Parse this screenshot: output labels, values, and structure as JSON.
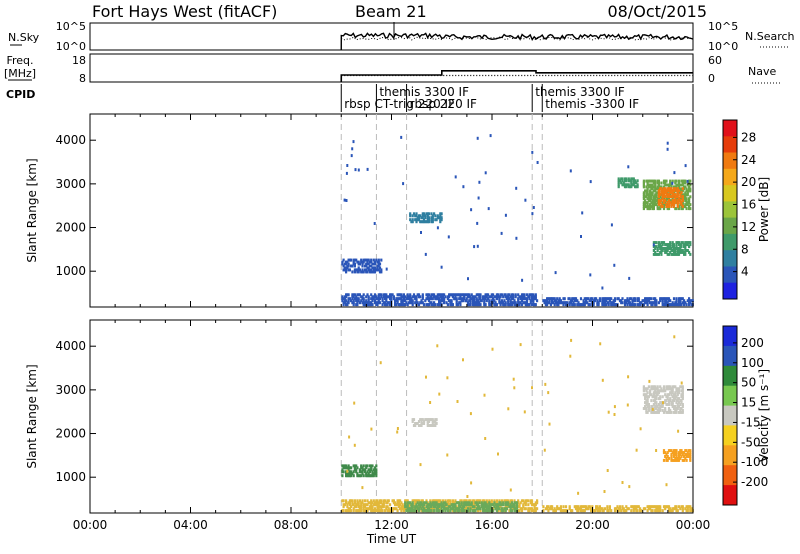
{
  "header": {
    "title": "Fort Hays West (fitACF)",
    "beam": "Beam 21",
    "date": "08/Oct/2015"
  },
  "chart_data": [
    {
      "type": "line",
      "panel": "noise",
      "left_label": "N.Sky",
      "right_label": "N.Search",
      "left_ticks": [
        "10^5",
        "10^0"
      ],
      "right_ticks": [
        "10^5",
        "10^0"
      ],
      "sky_series_color": "#000000",
      "search_series_color": "#000000"
    },
    {
      "type": "line",
      "panel": "frequency",
      "left_label_lines": [
        "Freq.",
        "[MHz]"
      ],
      "right_label": "Nave",
      "left_ticks": [
        18,
        8
      ],
      "right_ticks": [
        60,
        0
      ],
      "freq_steps": [
        {
          "from": 10.0,
          "to": 14.0,
          "value": 10.5
        },
        {
          "from": 14.0,
          "to": 17.75,
          "value": 12.0
        },
        {
          "from": 17.75,
          "to": 24.0,
          "value": 11.3
        }
      ],
      "nave_level": 14
    },
    {
      "type": "table",
      "panel": "cpid",
      "label": "CPID",
      "entries": [
        {
          "label": "rbsp CT-trig 220 IF",
          "start_h": 10.0,
          "row": 1
        },
        {
          "label": "themis 3300 IF",
          "start_h": 11.4,
          "row": 0
        },
        {
          "label": "rbsp 220 IF",
          "start_h": 12.6,
          "row": 1
        },
        {
          "label": "themis 3300 IF",
          "start_h": 17.6,
          "row": 0
        },
        {
          "label": "themis -3300 IF",
          "start_h": 18.0,
          "row": 1
        }
      ]
    },
    {
      "type": "heatmap",
      "panel": "power",
      "ylabel": "Slant Range [km]",
      "yticks": [
        1000,
        2000,
        3000,
        4000
      ],
      "ylim": [
        180,
        4600
      ],
      "xlim": [
        0,
        24
      ],
      "colorbar": {
        "label": "Power [dB]",
        "ticks": [
          4,
          8,
          12,
          16,
          20,
          24,
          28
        ],
        "colors": [
          "#1e22e0",
          "#2a55b8",
          "#2f7fa0",
          "#3f9a6a",
          "#6aa648",
          "#9cc43a",
          "#d8c820",
          "#f5a81a",
          "#f07a10",
          "#e63c0a",
          "#e0101a"
        ]
      },
      "regions": [
        {
          "h0": 10.0,
          "h1": 17.8,
          "r0": 200,
          "r1": 450,
          "color": "#2a55b8"
        },
        {
          "h0": 18.0,
          "h1": 24.0,
          "r0": 200,
          "r1": 350,
          "color": "#2a55b8"
        },
        {
          "h0": 10.0,
          "h1": 11.6,
          "r0": 950,
          "r1": 1250,
          "color": "#2a55b8"
        },
        {
          "h0": 12.7,
          "h1": 14.0,
          "r0": 2100,
          "r1": 2300,
          "color": "#2f7fa0"
        },
        {
          "h0": 22.0,
          "h1": 23.9,
          "r0": 2400,
          "r1": 3050,
          "color": "#6aa648"
        },
        {
          "h0": 22.6,
          "h1": 23.6,
          "r0": 2450,
          "r1": 2900,
          "color": "#f07a10"
        },
        {
          "h0": 22.4,
          "h1": 23.9,
          "r0": 1350,
          "r1": 1650,
          "color": "#3f9a6a"
        },
        {
          "h0": 21.0,
          "h1": 21.8,
          "r0": 2900,
          "r1": 3100,
          "color": "#3f9a6a"
        }
      ]
    },
    {
      "type": "heatmap",
      "panel": "velocity",
      "ylabel": "Slant Range [km]",
      "yticks": [
        1000,
        2000,
        3000,
        4000
      ],
      "ylim": [
        180,
        4600
      ],
      "xlim": [
        0,
        24
      ],
      "xlabel": "Time UT",
      "xtick_labels": [
        "00:00",
        "04:00",
        "08:00",
        "12:00",
        "16:00",
        "20:00",
        "00:00"
      ],
      "xtick_hours": [
        0,
        4,
        8,
        12,
        16,
        20,
        24
      ],
      "colorbar": {
        "label": "Velocity [m s⁻¹]",
        "ticks": [
          "200",
          "100",
          "50",
          "15",
          "-15",
          "-50",
          "-100",
          "-200"
        ],
        "colors": [
          "#1a2ad8",
          "#2a55b8",
          "#2f8a3a",
          "#78c850",
          "#c8c8c0",
          "#f5d020",
          "#f5a020",
          "#f06010",
          "#e01010"
        ]
      },
      "regions": [
        {
          "h0": 10.0,
          "h1": 17.8,
          "r0": 200,
          "r1": 450,
          "color": "#e2b83a"
        },
        {
          "h0": 12.5,
          "h1": 17.0,
          "r0": 200,
          "r1": 420,
          "color": "#6aaa5a"
        },
        {
          "h0": 18.0,
          "h1": 24.0,
          "r0": 200,
          "r1": 330,
          "color": "#e2b83a"
        },
        {
          "h0": 10.0,
          "h1": 11.4,
          "r0": 1000,
          "r1": 1250,
          "color": "#3f8a4a"
        },
        {
          "h0": 12.8,
          "h1": 13.8,
          "r0": 2150,
          "r1": 2300,
          "color": "#c8c8c0"
        },
        {
          "h0": 22.0,
          "h1": 23.6,
          "r0": 2450,
          "r1": 3050,
          "color": "#c8c8c0"
        },
        {
          "h0": 22.8,
          "h1": 23.9,
          "r0": 1350,
          "r1": 1600,
          "color": "#f5a020"
        }
      ]
    }
  ]
}
